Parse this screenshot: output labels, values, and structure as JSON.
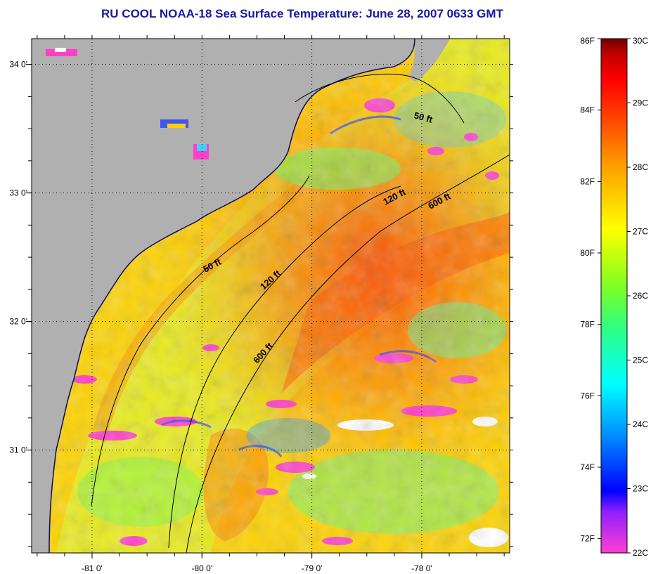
{
  "title": "RU COOL  NOAA-18  Sea Surface Temperature:  June 28, 2007 0633 GMT",
  "map": {
    "lon_range": [
      -81.55,
      -77.2
    ],
    "lat_range": [
      30.2,
      34.2
    ],
    "lon_ticks": [
      {
        "value": -81,
        "label": "-81 0'"
      },
      {
        "value": -80,
        "label": "-80 0'"
      },
      {
        "value": -79,
        "label": "-79 0'"
      },
      {
        "value": -78,
        "label": "-78 0'"
      }
    ],
    "lat_ticks": [
      {
        "value": 34,
        "label": "34 0'"
      },
      {
        "value": 33,
        "label": "33 0'"
      },
      {
        "value": 32,
        "label": "32 0'"
      },
      {
        "value": 31,
        "label": "31 0'"
      }
    ],
    "grid": "dotted",
    "land_color": "#b0b0b0",
    "contours": [
      {
        "depth": "50 ft",
        "label": "50 ft"
      },
      {
        "depth": "50 ft",
        "label": "50 ft"
      },
      {
        "depth": "120 ft",
        "label": "120 ft"
      },
      {
        "depth": "120 ft",
        "label": "120 ft"
      },
      {
        "depth": "600 ft",
        "label": "600 ft"
      },
      {
        "depth": "600 ft",
        "label": "600 ft"
      }
    ]
  },
  "colorbar": {
    "celsius": [
      {
        "value": 30,
        "label": "30C"
      },
      {
        "value": 29,
        "label": "29C"
      },
      {
        "value": 28,
        "label": "28C"
      },
      {
        "value": 27,
        "label": "27C"
      },
      {
        "value": 26,
        "label": "26C"
      },
      {
        "value": 25,
        "label": "25C"
      },
      {
        "value": 24,
        "label": "24C"
      },
      {
        "value": 23,
        "label": "23C"
      },
      {
        "value": 22,
        "label": "22C"
      }
    ],
    "fahrenheit": [
      {
        "value": 86,
        "label": "86F"
      },
      {
        "value": 84,
        "label": "84F"
      },
      {
        "value": 82,
        "label": "82F"
      },
      {
        "value": 80,
        "label": "80F"
      },
      {
        "value": 78,
        "label": "78F"
      },
      {
        "value": 76,
        "label": "76F"
      },
      {
        "value": 74,
        "label": "74F"
      },
      {
        "value": 72,
        "label": "72F"
      }
    ],
    "colors": [
      "#ff3fd0",
      "#9020ff",
      "#0000ff",
      "#0090ff",
      "#00ffff",
      "#30ff80",
      "#80ff20",
      "#ffff00",
      "#ffa000",
      "#ff4000",
      "#ff0000",
      "#c00000",
      "#700000"
    ]
  }
}
